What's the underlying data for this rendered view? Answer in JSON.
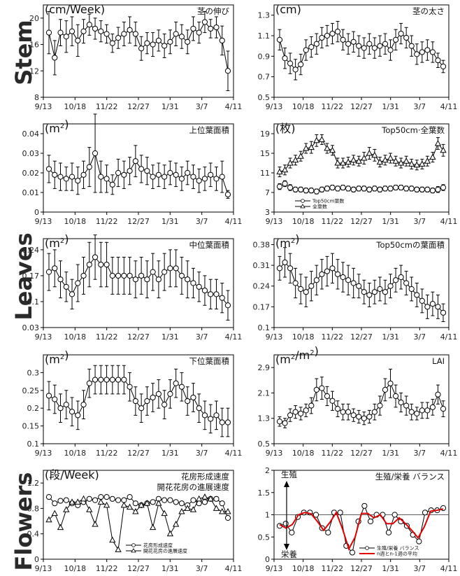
{
  "sections": [
    "Stem",
    "Leaves",
    "Flowers"
  ],
  "x_tick_labels": [
    "9/13",
    "10/18",
    "11/22",
    "12/27",
    "1/31",
    "3/7",
    "4/11"
  ],
  "colors": {
    "axis": "#000000",
    "marker_fill": "#ffffff",
    "avg_line": "#e00000",
    "ref_line": "#606060"
  },
  "chart_data": [
    {
      "id": "stem_growth",
      "type": "line",
      "unit": "(cm/Week)",
      "title": "茎の伸び",
      "ylim": [
        8,
        22
      ],
      "yticks": [
        8,
        12,
        16,
        20
      ],
      "series": [
        {
          "marker": "circle",
          "values": [
            17.8,
            14.0,
            17.8,
            17.2,
            18.0,
            16.6,
            18.0,
            19.0,
            18.4,
            18.0,
            17.6,
            16.2,
            17.0,
            17.6,
            18.2,
            17.6,
            15.4,
            16.2,
            16.0,
            16.6,
            15.8,
            16.4,
            17.6,
            17.2,
            16.4,
            18.4,
            17.8,
            19.4,
            18.4,
            18.6,
            16.6,
            12.0
          ],
          "err": [
            3.2,
            2.6,
            2.0,
            2.4,
            2.2,
            2.4,
            1.8,
            1.6,
            1.6,
            1.6,
            1.4,
            1.4,
            1.6,
            1.8,
            2.0,
            1.8,
            1.8,
            1.6,
            1.8,
            1.6,
            1.8,
            1.8,
            1.8,
            1.8,
            1.8,
            1.8,
            1.6,
            1.6,
            1.4,
            1.6,
            2.2,
            3.0
          ]
        }
      ]
    },
    {
      "id": "stem_diameter",
      "type": "line",
      "unit": "(cm)",
      "title": "茎の太さ",
      "ylim": [
        0.5,
        1.4
      ],
      "yticks": [
        0.5,
        0.7,
        0.9,
        1.1,
        1.3
      ],
      "series": [
        {
          "marker": "circle",
          "values": [
            1.06,
            0.88,
            0.83,
            0.77,
            0.82,
            0.96,
            0.99,
            1.02,
            1.08,
            1.1,
            1.12,
            1.14,
            1.06,
            1.02,
            1.04,
            1.0,
            0.98,
            1.02,
            0.98,
            1.0,
            1.02,
            0.96,
            1.06,
            1.12,
            1.08,
            1.0,
            0.92,
            0.94,
            0.96,
            0.94,
            0.86,
            0.8
          ],
          "err": [
            0.1,
            0.1,
            0.1,
            0.1,
            0.1,
            0.1,
            0.1,
            0.1,
            0.1,
            0.1,
            0.1,
            0.1,
            0.1,
            0.1,
            0.1,
            0.1,
            0.1,
            0.1,
            0.1,
            0.1,
            0.1,
            0.1,
            0.1,
            0.1,
            0.1,
            0.1,
            0.1,
            0.1,
            0.1,
            0.1,
            0.07,
            0.06
          ]
        }
      ]
    },
    {
      "id": "upper_leaf_area",
      "type": "line",
      "unit": "(m2)",
      "title": "上位葉面積",
      "ylim": [
        0,
        0.045
      ],
      "yticks": [
        0,
        0.01,
        0.02,
        0.03,
        0.04
      ],
      "series": [
        {
          "marker": "circle",
          "values": [
            0.022,
            0.019,
            0.018,
            0.017,
            0.018,
            0.016,
            0.019,
            0.023,
            0.03,
            0.018,
            0.017,
            0.014,
            0.02,
            0.019,
            0.021,
            0.026,
            0.022,
            0.021,
            0.018,
            0.019,
            0.018,
            0.02,
            0.019,
            0.017,
            0.02,
            0.018,
            0.016,
            0.017,
            0.019,
            0.017,
            0.018,
            0.009
          ],
          "err": [
            0.007,
            0.007,
            0.007,
            0.006,
            0.007,
            0.007,
            0.007,
            0.01,
            0.02,
            0.008,
            0.007,
            0.005,
            0.007,
            0.007,
            0.007,
            0.008,
            0.007,
            0.007,
            0.006,
            0.006,
            0.006,
            0.006,
            0.006,
            0.006,
            0.006,
            0.006,
            0.006,
            0.006,
            0.006,
            0.006,
            0.008,
            0.002
          ]
        }
      ]
    },
    {
      "id": "leaf_count",
      "type": "line",
      "unit": "(枚)",
      "title": "Top50cm·全葉数",
      "ylim": [
        3,
        21
      ],
      "yticks": [
        3,
        7,
        11,
        15,
        19
      ],
      "legend": [
        "Top50cm葉数",
        "全葉数"
      ],
      "series": [
        {
          "name": "Top50cm葉数",
          "marker": "circle",
          "values": [
            8.2,
            8.8,
            8.0,
            7.6,
            7.6,
            7.4,
            7.4,
            7.2,
            7.6,
            7.8,
            8.0,
            7.8,
            8.0,
            7.8,
            7.6,
            7.8,
            7.8,
            7.6,
            7.8,
            7.6,
            7.8,
            7.8,
            8.0,
            8.0,
            7.8,
            7.8,
            7.6,
            7.6,
            7.6,
            7.4,
            7.6,
            8.0
          ],
          "err": [
            0.6,
            0.6,
            0.6,
            0.5,
            0.5,
            0.5,
            0.5,
            0.5,
            0.5,
            0.5,
            0.5,
            0.5,
            0.5,
            0.5,
            0.5,
            0.5,
            0.5,
            0.5,
            0.5,
            0.5,
            0.5,
            0.5,
            0.5,
            0.5,
            0.5,
            0.5,
            0.5,
            0.5,
            0.5,
            0.5,
            0.6,
            0.6
          ]
        },
        {
          "name": "全葉数",
          "marker": "triangle",
          "values": [
            11.2,
            11.6,
            13.0,
            13.6,
            14.4,
            16.0,
            16.2,
            17.6,
            17.8,
            16.0,
            15.6,
            13.0,
            13.0,
            13.2,
            13.6,
            13.4,
            14.0,
            15.0,
            14.6,
            13.2,
            13.6,
            14.0,
            13.4,
            13.0,
            13.4,
            12.8,
            12.6,
            12.8,
            13.4,
            14.2,
            17.0,
            15.6
          ],
          "err": [
            1.0,
            1.0,
            1.0,
            1.0,
            1.0,
            1.0,
            1.2,
            1.2,
            1.0,
            1.0,
            1.0,
            1.0,
            1.0,
            1.0,
            1.0,
            1.0,
            1.2,
            1.2,
            1.2,
            1.0,
            1.0,
            1.0,
            1.0,
            1.0,
            1.0,
            1.0,
            1.0,
            1.0,
            1.0,
            1.0,
            1.2,
            1.2
          ]
        }
      ]
    },
    {
      "id": "middle_leaf_area",
      "type": "line",
      "unit": "(m2)",
      "title": "中位葉面積",
      "ylim": [
        0.03,
        0.27
      ],
      "yticks": [
        0.03,
        0.1,
        0.17,
        0.24
      ],
      "series": [
        {
          "marker": "circle",
          "values": [
            0.18,
            0.19,
            0.16,
            0.14,
            0.12,
            0.15,
            0.17,
            0.2,
            0.22,
            0.2,
            0.2,
            0.17,
            0.17,
            0.17,
            0.17,
            0.16,
            0.17,
            0.16,
            0.18,
            0.16,
            0.18,
            0.19,
            0.19,
            0.17,
            0.16,
            0.15,
            0.14,
            0.13,
            0.12,
            0.12,
            0.11,
            0.09
          ],
          "err": [
            0.05,
            0.05,
            0.05,
            0.04,
            0.04,
            0.05,
            0.05,
            0.06,
            0.06,
            0.06,
            0.06,
            0.05,
            0.05,
            0.05,
            0.05,
            0.05,
            0.05,
            0.05,
            0.05,
            0.05,
            0.05,
            0.05,
            0.05,
            0.05,
            0.05,
            0.04,
            0.04,
            0.04,
            0.04,
            0.04,
            0.04,
            0.04
          ]
        }
      ]
    },
    {
      "id": "top50_leaf_area",
      "type": "line",
      "unit": "(m2)",
      "title": "Top50cmの葉面積",
      "ylim": [
        0.1,
        0.4
      ],
      "yticks": [
        0.1,
        0.17,
        0.24,
        0.31,
        0.38
      ],
      "series": [
        {
          "marker": "circle",
          "values": [
            0.3,
            0.32,
            0.3,
            0.25,
            0.23,
            0.22,
            0.24,
            0.26,
            0.28,
            0.29,
            0.3,
            0.28,
            0.27,
            0.26,
            0.25,
            0.24,
            0.22,
            0.21,
            0.22,
            0.23,
            0.22,
            0.24,
            0.26,
            0.27,
            0.25,
            0.23,
            0.21,
            0.19,
            0.17,
            0.18,
            0.17,
            0.15
          ],
          "err": [
            0.04,
            0.05,
            0.05,
            0.05,
            0.05,
            0.05,
            0.05,
            0.05,
            0.05,
            0.05,
            0.05,
            0.05,
            0.05,
            0.05,
            0.05,
            0.04,
            0.04,
            0.04,
            0.04,
            0.04,
            0.04,
            0.04,
            0.04,
            0.04,
            0.04,
            0.04,
            0.04,
            0.04,
            0.04,
            0.04,
            0.04,
            0.03
          ]
        }
      ]
    },
    {
      "id": "lower_leaf_area",
      "type": "line",
      "unit": "(m2)",
      "title": "下位葉面積",
      "ylim": [
        0.1,
        0.35
      ],
      "yticks": [
        0.1,
        0.15,
        0.2,
        0.25,
        0.3
      ],
      "series": [
        {
          "marker": "circle",
          "values": [
            0.235,
            0.225,
            0.2,
            0.21,
            0.19,
            0.18,
            0.21,
            0.27,
            0.28,
            0.28,
            0.28,
            0.28,
            0.28,
            0.28,
            0.26,
            0.22,
            0.2,
            0.22,
            0.23,
            0.24,
            0.21,
            0.24,
            0.27,
            0.26,
            0.22,
            0.23,
            0.2,
            0.18,
            0.17,
            0.18,
            0.16,
            0.16
          ],
          "err": [
            0.04,
            0.04,
            0.04,
            0.04,
            0.04,
            0.04,
            0.04,
            0.04,
            0.04,
            0.04,
            0.04,
            0.04,
            0.04,
            0.04,
            0.04,
            0.04,
            0.04,
            0.04,
            0.04,
            0.04,
            0.04,
            0.04,
            0.04,
            0.04,
            0.04,
            0.04,
            0.04,
            0.04,
            0.04,
            0.04,
            0.04,
            0.04
          ]
        }
      ]
    },
    {
      "id": "lai",
      "type": "line",
      "unit": "(m2/m2)",
      "title": "LAI",
      "ylim": [
        0.5,
        3.3
      ],
      "yticks": [
        0.5,
        1.3,
        2.1,
        2.9
      ],
      "series": [
        {
          "marker": "circle",
          "values": [
            1.2,
            1.15,
            1.4,
            1.5,
            1.45,
            1.55,
            1.7,
            2.2,
            2.25,
            2.0,
            1.85,
            1.6,
            1.5,
            1.5,
            1.4,
            1.35,
            1.3,
            1.35,
            1.5,
            1.7,
            2.2,
            2.4,
            2.0,
            1.8,
            1.7,
            1.5,
            1.45,
            1.55,
            1.55,
            1.65,
            2.05,
            1.6
          ],
          "err": [
            0.15,
            0.15,
            0.2,
            0.2,
            0.2,
            0.2,
            0.25,
            0.35,
            0.35,
            0.3,
            0.3,
            0.25,
            0.25,
            0.25,
            0.2,
            0.2,
            0.2,
            0.2,
            0.25,
            0.3,
            0.35,
            0.45,
            0.35,
            0.3,
            0.3,
            0.25,
            0.2,
            0.25,
            0.25,
            0.25,
            0.3,
            0.25
          ]
        }
      ]
    },
    {
      "id": "flower_rate",
      "type": "line",
      "unit": "(段/Week)",
      "title": "花房形成速度",
      "title2": "開花花房の進展速度",
      "ylim": [
        0,
        1.4
      ],
      "yticks": [
        0.0,
        0.4,
        0.8,
        1.2
      ],
      "legend": [
        "花房形成速度",
        "開花花房の進展速度"
      ],
      "series": [
        {
          "name": "花房形成速度",
          "marker": "circle",
          "values": [
            0.98,
            0.88,
            0.92,
            0.93,
            0.88,
            0.85,
            0.9,
            0.95,
            0.93,
            0.98,
            0.98,
            0.95,
            0.93,
            0.93,
            0.98,
            0.88,
            0.85,
            0.88,
            0.9,
            0.95,
            0.93,
            0.93,
            0.9,
            0.88,
            0.85,
            0.93,
            0.88,
            0.9,
            0.95,
            0.95,
            0.88,
            0.65
          ]
        },
        {
          "name": "開花花房の進展速度",
          "marker": "triangle",
          "values": [
            0.62,
            0.72,
            0.5,
            0.78,
            0.9,
            0.9,
            0.95,
            0.78,
            0.55,
            0.9,
            0.85,
            0.3,
            0.15,
            0.85,
            0.82,
            0.75,
            0.85,
            0.88,
            0.5,
            0.88,
            0.72,
            0.4,
            0.55,
            0.75,
            0.8,
            0.78,
            0.95,
            0.98,
            0.95,
            0.8,
            0.75,
            0.75
          ]
        }
      ]
    },
    {
      "id": "balance",
      "type": "line",
      "unit": "",
      "title": "生殖/栄養 バランス",
      "ylim": [
        0,
        2.0
      ],
      "yticks": [
        0.0,
        0.5,
        1.0,
        1.5,
        2.0
      ],
      "annotations": [
        "生殖",
        "栄養"
      ],
      "legend": [
        "生殖/栄養 バランス",
        "n週とn-1週の平均"
      ],
      "reference_line": 1.0,
      "series": [
        {
          "name": "生殖/栄養 バランス",
          "marker": "circle",
          "values": [
            0.75,
            0.8,
            0.6,
            0.95,
            1.05,
            1.05,
            1.0,
            0.7,
            0.6,
            1.05,
            1.05,
            0.3,
            0.15,
            0.85,
            1.2,
            0.85,
            1.0,
            1.0,
            0.6,
            1.0,
            0.85,
            0.75,
            0.55,
            0.4,
            1.05,
            1.1,
            1.1,
            1.15
          ]
        },
        {
          "name": "n週とn-1週の平均",
          "marker": "none",
          "values": [
            0.78,
            0.7,
            0.78,
            1.0,
            1.05,
            1.02,
            0.85,
            0.65,
            0.83,
            1.05,
            0.68,
            0.23,
            0.5,
            1.03,
            1.03,
            0.93,
            1.0,
            0.8,
            0.8,
            0.93,
            0.8,
            0.65,
            0.48,
            0.73,
            1.08,
            1.1,
            1.13
          ]
        }
      ]
    }
  ]
}
